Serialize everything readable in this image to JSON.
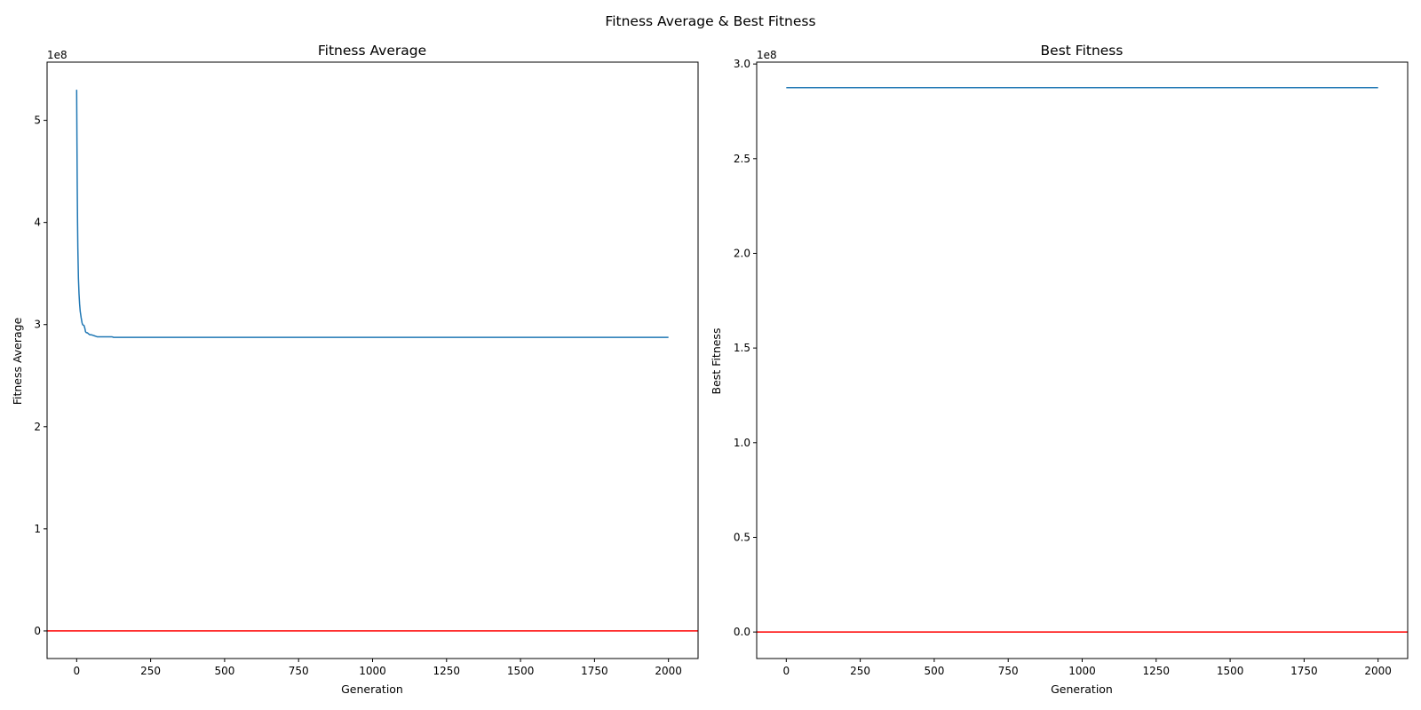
{
  "figure": {
    "suptitle": "Fitness Average & Best Fitness"
  },
  "chart_data": [
    {
      "type": "line",
      "title": "Fitness Average",
      "xlabel": "Generation",
      "ylabel": "Fitness Average",
      "y_offset_label": "1e8",
      "xlim": [
        -100,
        2100
      ],
      "ylim": [
        -0.27,
        5.57
      ],
      "xticks": [
        0,
        250,
        500,
        750,
        1000,
        1250,
        1500,
        1750,
        2000
      ],
      "yticks": [
        0,
        1,
        2,
        3,
        4,
        5
      ],
      "grid": false,
      "series": [
        {
          "color": "#1f77b4",
          "x": [
            0,
            1,
            2,
            3,
            4,
            5,
            6,
            8,
            10,
            12,
            15,
            18,
            20,
            25,
            28,
            30,
            33,
            36,
            40,
            45,
            50,
            55,
            60,
            65,
            70,
            80,
            90,
            100,
            110,
            120,
            125,
            130,
            150,
            200,
            300,
            500,
            750,
            1000,
            1250,
            1500,
            1750,
            2000
          ],
          "y": [
            5.3,
            4.8,
            4.35,
            4.0,
            3.75,
            3.6,
            3.45,
            3.3,
            3.2,
            3.13,
            3.07,
            3.02,
            3.0,
            2.99,
            2.96,
            2.93,
            2.92,
            2.92,
            2.91,
            2.9,
            2.9,
            2.895,
            2.89,
            2.885,
            2.88,
            2.88,
            2.88,
            2.88,
            2.88,
            2.88,
            2.875,
            2.875,
            2.875,
            2.875,
            2.875,
            2.875,
            2.875,
            2.875,
            2.875,
            2.875,
            2.875,
            2.875
          ]
        },
        {
          "color": "#ff0000",
          "type": "hline",
          "y": 0
        }
      ]
    },
    {
      "type": "line",
      "title": "Best Fitness",
      "xlabel": "Generation",
      "ylabel": "Best Fitness",
      "y_offset_label": "1e8",
      "xlim": [
        -100,
        2100
      ],
      "ylim": [
        -0.14,
        3.01
      ],
      "xticks": [
        0,
        250,
        500,
        750,
        1000,
        1250,
        1500,
        1750,
        2000
      ],
      "yticks": [
        0.0,
        0.5,
        1.0,
        1.5,
        2.0,
        2.5,
        3.0
      ],
      "grid": false,
      "series": [
        {
          "color": "#1f77b4",
          "x": [
            0,
            2000
          ],
          "y": [
            2.875,
            2.875
          ]
        },
        {
          "color": "#ff0000",
          "type": "hline",
          "y": 0
        }
      ]
    }
  ]
}
